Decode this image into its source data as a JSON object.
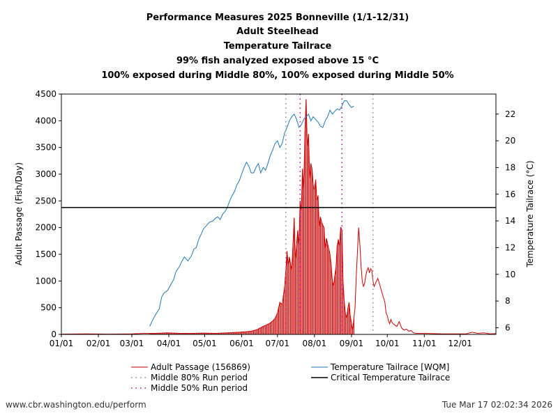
{
  "chart_data": {
    "type": "line",
    "title": [
      "Performance Measures 2025 Bonneville (1/1-12/31)",
      "Adult Steelhead",
      "Temperature Tailrace",
      "99% fish analyzed exposed above 15 °C",
      "100% exposed during Middle 80%, 100% exposed during Middle 50%"
    ],
    "xlabel": "",
    "ylabel_left": "Adult Passage (Fish/Day)",
    "ylabel_right": "Temperature Tailrace (°C)",
    "x_range_doy": [
      1,
      365
    ],
    "ylim_left": [
      0,
      4500
    ],
    "ylim_right": [
      5.5,
      23.5
    ],
    "x_ticks": [
      {
        "doy": 1,
        "label": "01/01"
      },
      {
        "doy": 32,
        "label": "02/01"
      },
      {
        "doy": 60,
        "label": "03/01"
      },
      {
        "doy": 91,
        "label": "04/01"
      },
      {
        "doy": 121,
        "label": "05/01"
      },
      {
        "doy": 152,
        "label": "06/01"
      },
      {
        "doy": 182,
        "label": "07/01"
      },
      {
        "doy": 213,
        "label": "08/01"
      },
      {
        "doy": 244,
        "label": "09/01"
      },
      {
        "doy": 274,
        "label": "10/01"
      },
      {
        "doy": 305,
        "label": "11/01"
      },
      {
        "doy": 335,
        "label": "12/01"
      }
    ],
    "y_ticks_left": [
      0,
      500,
      1000,
      1500,
      2000,
      2500,
      3000,
      3500,
      4000,
      4500
    ],
    "y_ticks_right": [
      6,
      8,
      10,
      12,
      14,
      16,
      18,
      20,
      22
    ],
    "critical_temperature": 15,
    "middle80_doy": [
      189,
      262
    ],
    "middle50_doy": [
      201,
      236
    ],
    "series": [
      {
        "name": "Adult Passage (156869)",
        "axis": "left",
        "color": "#cc0000",
        "points": [
          [
            1,
            5
          ],
          [
            20,
            10
          ],
          [
            40,
            5
          ],
          [
            60,
            10
          ],
          [
            70,
            20
          ],
          [
            80,
            20
          ],
          [
            90,
            30
          ],
          [
            100,
            20
          ],
          [
            110,
            20
          ],
          [
            120,
            25
          ],
          [
            130,
            20
          ],
          [
            140,
            30
          ],
          [
            150,
            40
          ],
          [
            155,
            50
          ],
          [
            160,
            60
          ],
          [
            165,
            90
          ],
          [
            170,
            150
          ],
          [
            175,
            200
          ],
          [
            178,
            250
          ],
          [
            180,
            300
          ],
          [
            182,
            400
          ],
          [
            184,
            600
          ],
          [
            186,
            560
          ],
          [
            188,
            900
          ],
          [
            189,
            1200
          ],
          [
            190,
            1560
          ],
          [
            191,
            1300
          ],
          [
            192,
            1450
          ],
          [
            194,
            1200
          ],
          [
            196,
            2180
          ],
          [
            197,
            1400
          ],
          [
            199,
            1950
          ],
          [
            200,
            1650
          ],
          [
            201,
            2500
          ],
          [
            202,
            2300
          ],
          [
            203,
            3100
          ],
          [
            204,
            2700
          ],
          [
            205,
            3800
          ],
          [
            206,
            4400
          ],
          [
            207,
            3500
          ],
          [
            208,
            3750
          ],
          [
            209,
            2900
          ],
          [
            210,
            3200
          ],
          [
            211,
            3100
          ],
          [
            212,
            2800
          ],
          [
            213,
            2700
          ],
          [
            214,
            2900
          ],
          [
            215,
            2500
          ],
          [
            216,
            2600
          ],
          [
            217,
            2000
          ],
          [
            218,
            2200
          ],
          [
            219,
            2100
          ],
          [
            220,
            2050
          ],
          [
            221,
            2000
          ],
          [
            222,
            1600
          ],
          [
            223,
            1800
          ],
          [
            224,
            1700
          ],
          [
            225,
            1600
          ],
          [
            226,
            1500
          ],
          [
            227,
            1300
          ],
          [
            228,
            1000
          ],
          [
            229,
            900
          ],
          [
            230,
            1100
          ],
          [
            231,
            1250
          ],
          [
            232,
            1650
          ],
          [
            233,
            1780
          ],
          [
            234,
            1650
          ],
          [
            235,
            2010
          ],
          [
            236,
            1950
          ],
          [
            237,
            1000
          ],
          [
            238,
            600
          ],
          [
            239,
            400
          ],
          [
            240,
            300
          ],
          [
            241,
            500
          ],
          [
            242,
            600
          ],
          [
            243,
            350
          ],
          [
            245,
            80
          ],
          [
            247,
            500
          ],
          [
            248,
            1100
          ],
          [
            250,
            2000
          ],
          [
            251,
            1700
          ],
          [
            252,
            1300
          ],
          [
            253,
            1000
          ],
          [
            254,
            900
          ],
          [
            255,
            950
          ],
          [
            256,
            1100
          ],
          [
            257,
            1200
          ],
          [
            258,
            1250
          ],
          [
            259,
            1150
          ],
          [
            260,
            1230
          ],
          [
            261,
            1200
          ],
          [
            262,
            1000
          ],
          [
            263,
            900
          ],
          [
            264,
            950
          ],
          [
            266,
            1050
          ],
          [
            267,
            980
          ],
          [
            268,
            900
          ],
          [
            270,
            750
          ],
          [
            272,
            600
          ],
          [
            273,
            400
          ],
          [
            274,
            350
          ],
          [
            275,
            250
          ],
          [
            276,
            200
          ],
          [
            277,
            280
          ],
          [
            278,
            220
          ],
          [
            280,
            180
          ],
          [
            282,
            150
          ],
          [
            284,
            240
          ],
          [
            286,
            120
          ],
          [
            288,
            80
          ],
          [
            290,
            100
          ],
          [
            292,
            60
          ],
          [
            294,
            70
          ],
          [
            296,
            30
          ],
          [
            298,
            20
          ],
          [
            305,
            20
          ],
          [
            320,
            10
          ],
          [
            340,
            10
          ],
          [
            345,
            40
          ],
          [
            350,
            20
          ],
          [
            355,
            30
          ],
          [
            360,
            10
          ],
          [
            365,
            15
          ]
        ]
      },
      {
        "name": "Temperature Tailrace [WQM]",
        "axis": "right",
        "color": "#1f77b4",
        "points": [
          [
            75,
            6.1
          ],
          [
            77,
            6.5
          ],
          [
            80,
            7.0
          ],
          [
            83,
            7.4
          ],
          [
            85,
            8.3
          ],
          [
            87,
            8.6
          ],
          [
            90,
            8.8
          ],
          [
            93,
            9.3
          ],
          [
            95,
            9.6
          ],
          [
            97,
            10.2
          ],
          [
            100,
            10.6
          ],
          [
            102,
            11.0
          ],
          [
            104,
            11.3
          ],
          [
            107,
            11.0
          ],
          [
            110,
            11.4
          ],
          [
            112,
            11.9
          ],
          [
            114,
            12.0
          ],
          [
            116,
            12.6
          ],
          [
            118,
            13.0
          ],
          [
            120,
            13.4
          ],
          [
            122,
            13.6
          ],
          [
            125,
            13.9
          ],
          [
            128,
            14.0
          ],
          [
            130,
            14.2
          ],
          [
            132,
            14.3
          ],
          [
            134,
            14.1
          ],
          [
            136,
            14.5
          ],
          [
            138,
            14.7
          ],
          [
            140,
            15.0
          ],
          [
            142,
            15.5
          ],
          [
            144,
            15.9
          ],
          [
            146,
            16.2
          ],
          [
            148,
            16.7
          ],
          [
            150,
            17.0
          ],
          [
            152,
            17.5
          ],
          [
            154,
            18.0
          ],
          [
            156,
            18.4
          ],
          [
            158,
            18.1
          ],
          [
            160,
            17.6
          ],
          [
            162,
            17.6
          ],
          [
            164,
            18.0
          ],
          [
            166,
            18.3
          ],
          [
            168,
            17.6
          ],
          [
            170,
            18.0
          ],
          [
            172,
            17.8
          ],
          [
            174,
            18.3
          ],
          [
            176,
            18.9
          ],
          [
            178,
            19.3
          ],
          [
            180,
            19.8
          ],
          [
            182,
            20.0
          ],
          [
            184,
            19.5
          ],
          [
            186,
            19.8
          ],
          [
            188,
            20.6
          ],
          [
            190,
            21.0
          ],
          [
            192,
            21.5
          ],
          [
            194,
            21.8
          ],
          [
            196,
            22.0
          ],
          [
            198,
            21.6
          ],
          [
            200,
            21.0
          ],
          [
            202,
            21.2
          ],
          [
            204,
            21.6
          ],
          [
            206,
            21.8
          ],
          [
            208,
            22.0
          ],
          [
            210,
            21.5
          ],
          [
            212,
            21.8
          ],
          [
            214,
            21.6
          ],
          [
            216,
            21.4
          ],
          [
            218,
            21.1
          ],
          [
            220,
            21.0
          ],
          [
            222,
            21.5
          ],
          [
            224,
            21.8
          ],
          [
            226,
            22.3
          ],
          [
            228,
            22.0
          ],
          [
            230,
            22.2
          ],
          [
            232,
            22.4
          ],
          [
            234,
            22.3
          ],
          [
            236,
            22.6
          ],
          [
            238,
            23.0
          ],
          [
            240,
            23.0
          ],
          [
            242,
            22.7
          ],
          [
            244,
            22.5
          ],
          [
            246,
            22.6
          ]
        ]
      }
    ]
  },
  "legend": {
    "passage": "Adult Passage (156869)",
    "temperature": "Temperature Tailrace [WQM]",
    "middle80": "Middle 80% Run period",
    "critical": "Critical Temperature Tailrace",
    "middle50": "Middle 50% Run period"
  },
  "colors": {
    "passage": "#cc0000",
    "temperature": "#1f77b4",
    "middle80": "#7f7faa",
    "middle50": "#aa00aa",
    "critical": "#000000"
  },
  "footer": {
    "source": "www.cbr.washington.edu/perform",
    "timestamp": "Tue Mar 17 02:02:34 2026"
  }
}
